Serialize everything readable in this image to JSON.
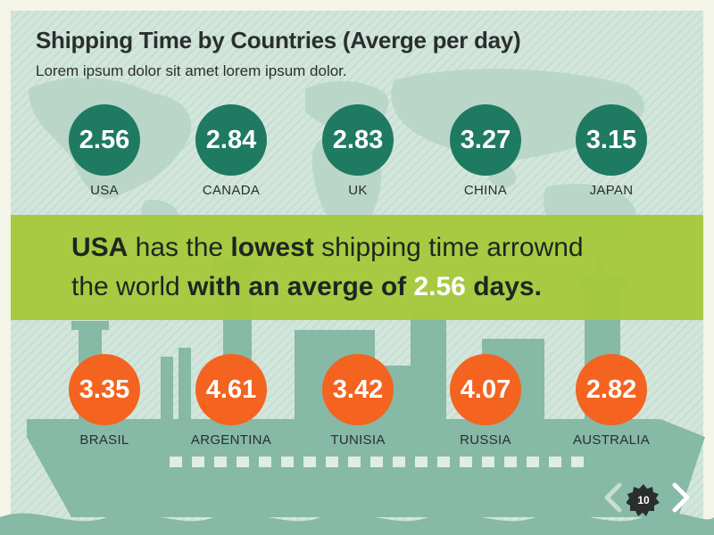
{
  "title": "Shipping Time by Countries (Averge per day)",
  "subtitle": "Lorem ipsum dolor sit amet lorem ipsum dolor.",
  "top_row": [
    {
      "country": "USA",
      "value": "2.56"
    },
    {
      "country": "CANADA",
      "value": "2.84"
    },
    {
      "country": "UK",
      "value": "2.83"
    },
    {
      "country": "CHINA",
      "value": "3.27"
    },
    {
      "country": "JAPAN",
      "value": "3.15"
    }
  ],
  "bottom_row": [
    {
      "country": "BRASIL",
      "value": "3.35"
    },
    {
      "country": "ARGENTINA",
      "value": "4.61"
    },
    {
      "country": "TUNISIA",
      "value": "3.42"
    },
    {
      "country": "RUSSIA",
      "value": "4.07"
    },
    {
      "country": "AUSTRALIA",
      "value": "2.82"
    }
  ],
  "banner": {
    "part1": "USA",
    "part2": " has the ",
    "part3": "lowest",
    "part4": " shipping time arrownd",
    "part5": "the world ",
    "part6": "with an averge of ",
    "part7": "2.56",
    "part8": "  days."
  },
  "page_number": "10",
  "colors": {
    "green_circle": "#1f7a62",
    "orange_circle": "#f4631f",
    "banner": "#a5c93b",
    "background": "#d3e6dc",
    "silhouette": "#86b9a6"
  },
  "icons": {
    "prev": "chevron-left-icon",
    "next": "chevron-right-icon",
    "badge": "page-badge-icon"
  }
}
